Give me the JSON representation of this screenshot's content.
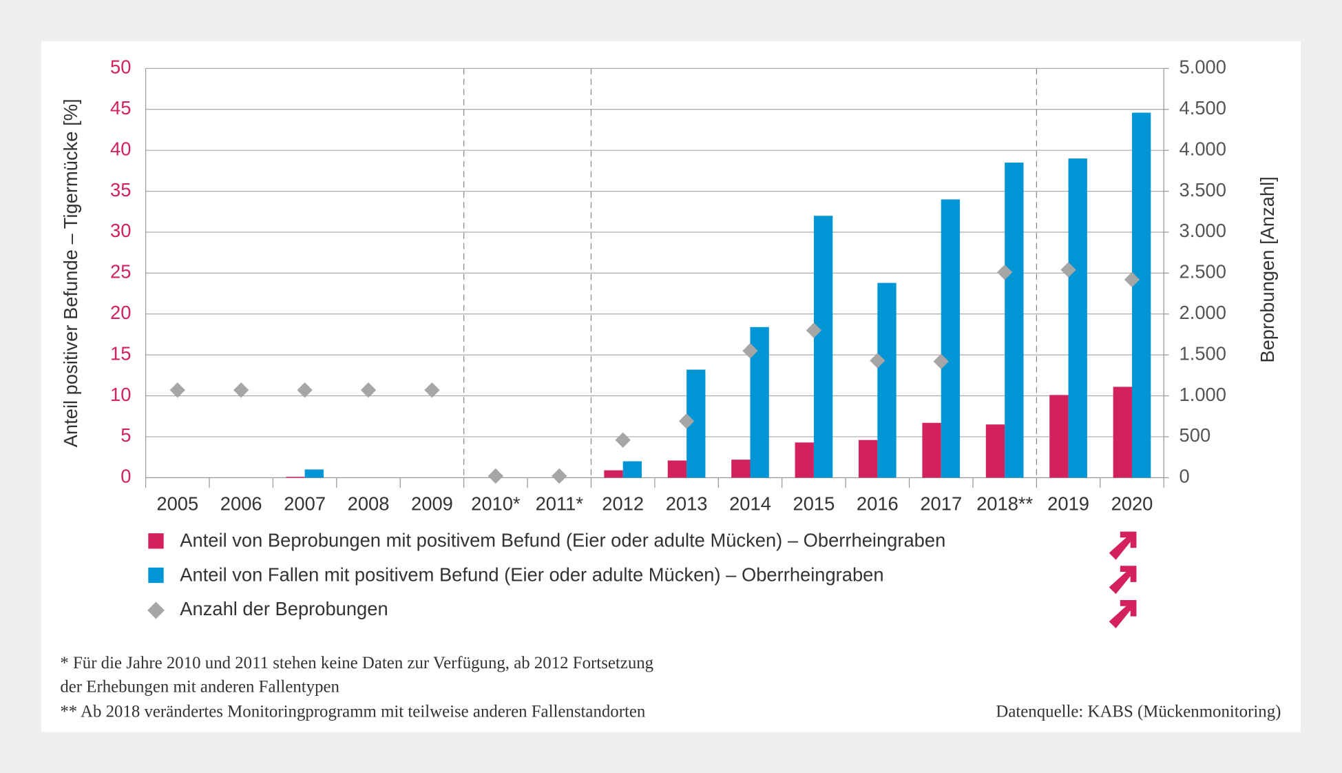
{
  "chart_data": {
    "type": "bar",
    "y_label": "Anteil positiver Befunde – Tigermücke  [%]",
    "y2_label": "Beprobungen [Anzahl]",
    "categories": [
      "2005",
      "2006",
      "2007",
      "2008",
      "2009",
      "2010*",
      "2011*",
      "2012",
      "2013",
      "2014",
      "2015",
      "2016",
      "2017",
      "2018**",
      "2019",
      "2020"
    ],
    "ylim": [
      0,
      50
    ],
    "yticks": [
      0,
      5,
      10,
      15,
      20,
      25,
      30,
      35,
      40,
      45,
      50
    ],
    "y2lim": [
      0,
      5000
    ],
    "y2ticks": [
      0,
      500,
      {
        "value": 1000,
        "label": "1.000"
      },
      {
        "value": 1500,
        "label": "1.500"
      },
      {
        "value": 2000,
        "label": "2.000"
      },
      {
        "value": 2500,
        "label": "2.500"
      },
      {
        "value": 3000,
        "label": "3.000"
      },
      {
        "value": 3500,
        "label": "3.500"
      },
      {
        "value": 4000,
        "label": "4.000"
      },
      {
        "value": 4500,
        "label": "4.500"
      },
      {
        "value": 5000,
        "label": "5.000"
      }
    ],
    "grid": true,
    "series": [
      {
        "name": "Anteil von Beprobungen mit positivem Befund (Eier oder adulte Mücken) – Oberrheingraben",
        "type": "bar",
        "color": "#d2215d",
        "values": [
          null,
          null,
          0.1,
          null,
          null,
          null,
          null,
          0.9,
          2.1,
          2.2,
          4.3,
          4.6,
          6.7,
          6.5,
          10.1,
          11.1
        ]
      },
      {
        "name": "Anteil von Fallen mit positivem Befund (Eier oder adulte Mücken) – Oberrheingraben",
        "type": "bar",
        "color": "#0096d6",
        "values": [
          null,
          null,
          1.0,
          null,
          null,
          null,
          null,
          2.0,
          13.2,
          18.4,
          32.0,
          23.8,
          34.0,
          38.5,
          39.0,
          44.6
        ]
      },
      {
        "name": "Anzahl der Beprobungen",
        "type": "scatter",
        "axis": "y2",
        "color": "#a6a6a6",
        "values": [
          1070,
          1070,
          1070,
          1070,
          1070,
          20,
          20,
          460,
          690,
          1550,
          1800,
          1430,
          1420,
          2510,
          2540,
          2420
        ]
      }
    ],
    "notes": [
      "* Für die Jahre 2010 und 2011 stehen keine Daten zur Verfügung, ab 2012 Fortsetzung",
      "der Erhebungen mit anderen Fallentypen",
      "** Ab 2018 verändertes Monitoringprogramm mit teilweise anderen Fallenstandorten"
    ],
    "source": "Datenquelle: KABS (Mückenmonitoring)"
  }
}
